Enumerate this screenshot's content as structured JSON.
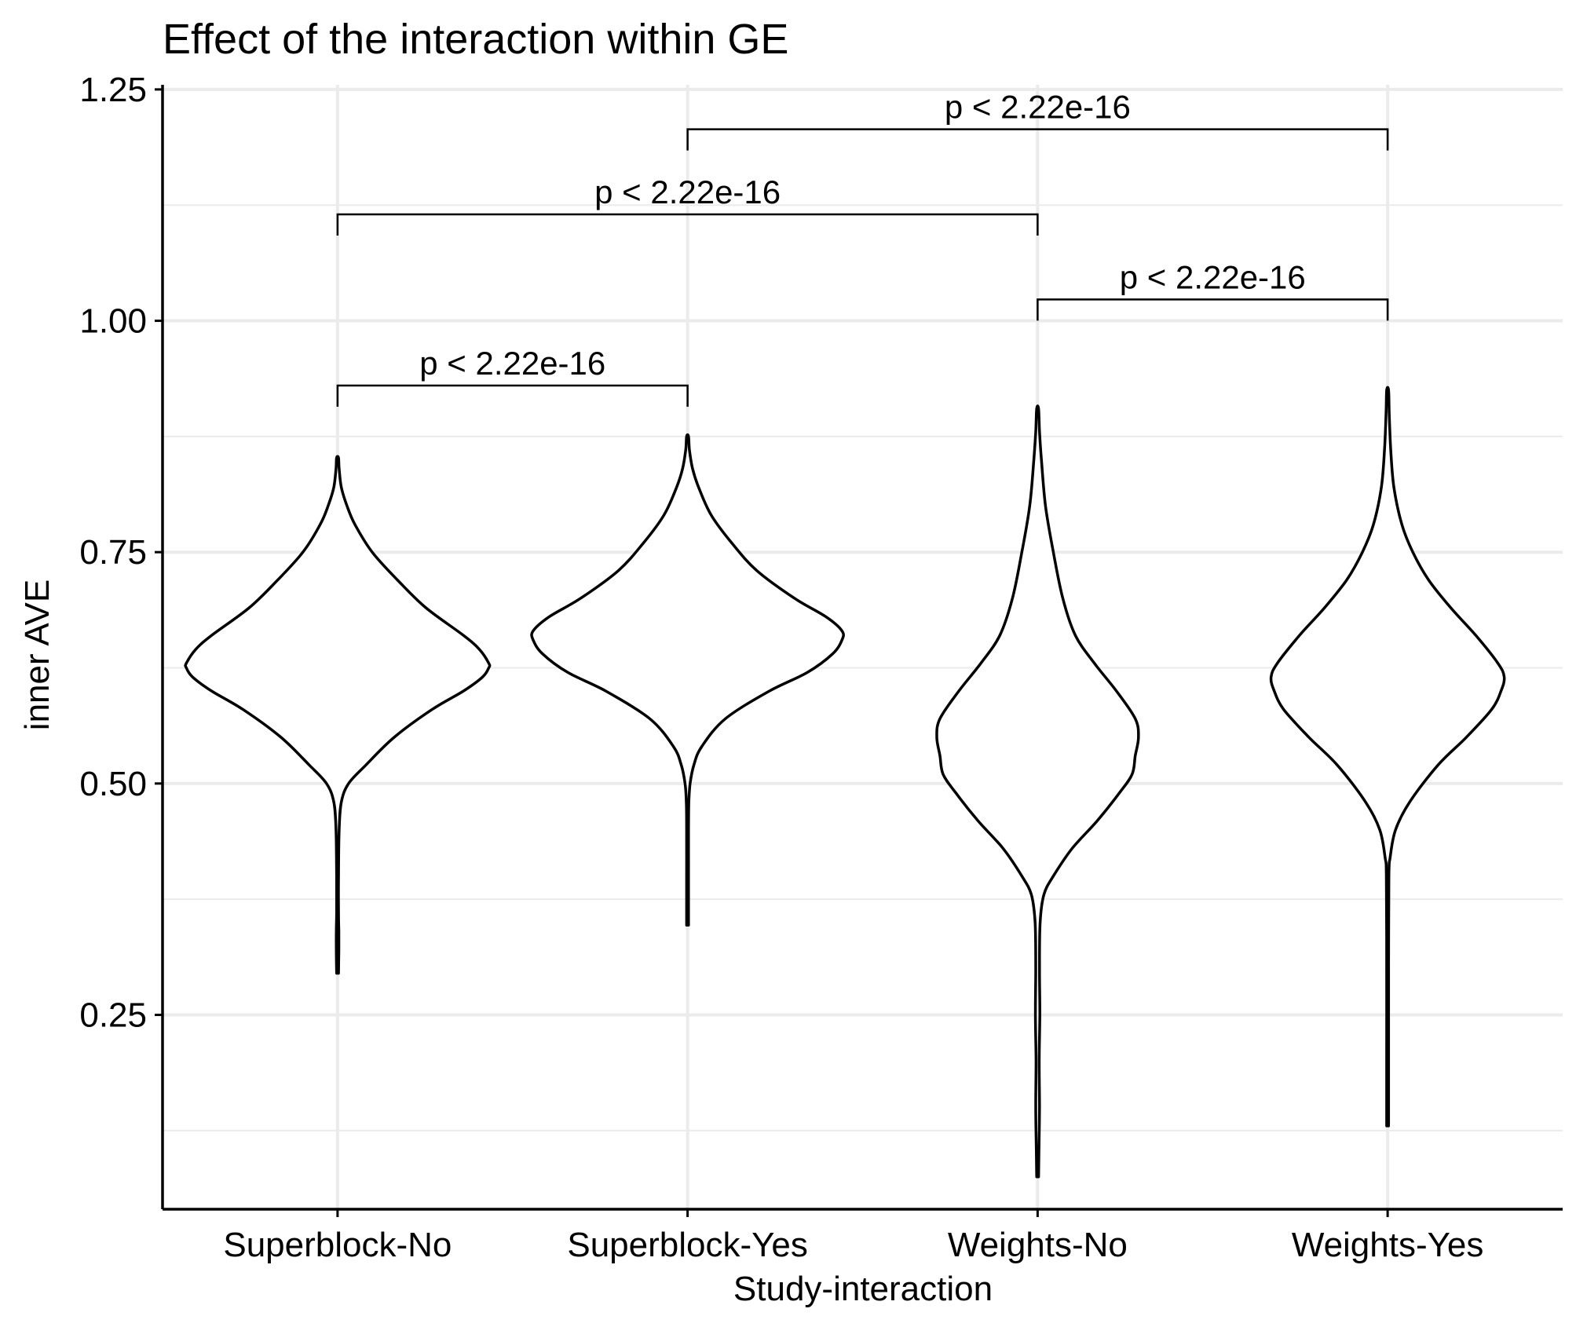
{
  "chart_data": {
    "type": "violin",
    "title": "Effect of the interaction within GE",
    "xlabel": "Study-interaction",
    "ylabel": "inner AVE",
    "categories": [
      "Superblock-No",
      "Superblock-Yes",
      "Weights-No",
      "Weights-Yes"
    ],
    "ylim": [
      0.04,
      1.255
    ],
    "yticks": [
      0.25,
      0.5,
      0.75,
      1.0
    ],
    "ytick_labels": [
      "0.25",
      "0.50",
      "0.75",
      "1.00",
      "1.25"
    ],
    "ytick_values": [
      0.25,
      0.5,
      0.75,
      1.0,
      1.25
    ],
    "grid": true,
    "violins": [
      {
        "category": "Superblock-No",
        "min": 0.295,
        "max": 0.852,
        "profile": [
          [
            0.295,
            0.003
          ],
          [
            0.32,
            0.004
          ],
          [
            0.34,
            0.004
          ],
          [
            0.36,
            0.003
          ],
          [
            0.4,
            0.003
          ],
          [
            0.45,
            0.005
          ],
          [
            0.48,
            0.012
          ],
          [
            0.5,
            0.035
          ],
          [
            0.52,
            0.09
          ],
          [
            0.55,
            0.18
          ],
          [
            0.58,
            0.3
          ],
          [
            0.6,
            0.4
          ],
          [
            0.615,
            0.46
          ],
          [
            0.625,
            0.48
          ],
          [
            0.63,
            0.48
          ],
          [
            0.645,
            0.45
          ],
          [
            0.66,
            0.4
          ],
          [
            0.69,
            0.28
          ],
          [
            0.72,
            0.19
          ],
          [
            0.75,
            0.11
          ],
          [
            0.78,
            0.055
          ],
          [
            0.8,
            0.03
          ],
          [
            0.82,
            0.012
          ],
          [
            0.84,
            0.005
          ],
          [
            0.852,
            0.003
          ]
        ]
      },
      {
        "category": "Superblock-Yes",
        "min": 0.347,
        "max": 0.875,
        "profile": [
          [
            0.347,
            0.003
          ],
          [
            0.4,
            0.003
          ],
          [
            0.45,
            0.003
          ],
          [
            0.48,
            0.004
          ],
          [
            0.5,
            0.008
          ],
          [
            0.52,
            0.02
          ],
          [
            0.54,
            0.045
          ],
          [
            0.57,
            0.12
          ],
          [
            0.6,
            0.26
          ],
          [
            0.62,
            0.38
          ],
          [
            0.64,
            0.46
          ],
          [
            0.655,
            0.49
          ],
          [
            0.665,
            0.49
          ],
          [
            0.68,
            0.44
          ],
          [
            0.7,
            0.34
          ],
          [
            0.73,
            0.22
          ],
          [
            0.76,
            0.14
          ],
          [
            0.79,
            0.075
          ],
          [
            0.82,
            0.035
          ],
          [
            0.84,
            0.016
          ],
          [
            0.86,
            0.006
          ],
          [
            0.875,
            0.003
          ]
        ]
      },
      {
        "category": "Weights-No",
        "min": 0.075,
        "max": 0.905,
        "profile": [
          [
            0.075,
            0.003
          ],
          [
            0.1,
            0.004
          ],
          [
            0.15,
            0.006
          ],
          [
            0.2,
            0.005
          ],
          [
            0.25,
            0.007
          ],
          [
            0.3,
            0.006
          ],
          [
            0.35,
            0.008
          ],
          [
            0.38,
            0.02
          ],
          [
            0.4,
            0.05
          ],
          [
            0.43,
            0.11
          ],
          [
            0.46,
            0.19
          ],
          [
            0.49,
            0.26
          ],
          [
            0.51,
            0.3
          ],
          [
            0.53,
            0.31
          ],
          [
            0.55,
            0.32
          ],
          [
            0.57,
            0.31
          ],
          [
            0.6,
            0.25
          ],
          [
            0.63,
            0.18
          ],
          [
            0.66,
            0.12
          ],
          [
            0.7,
            0.08
          ],
          [
            0.75,
            0.05
          ],
          [
            0.8,
            0.025
          ],
          [
            0.85,
            0.012
          ],
          [
            0.88,
            0.006
          ],
          [
            0.905,
            0.003
          ]
        ]
      },
      {
        "category": "Weights-Yes",
        "min": 0.13,
        "max": 0.925,
        "profile": [
          [
            0.13,
            0.003
          ],
          [
            0.2,
            0.003
          ],
          [
            0.3,
            0.003
          ],
          [
            0.4,
            0.004
          ],
          [
            0.42,
            0.008
          ],
          [
            0.45,
            0.025
          ],
          [
            0.48,
            0.07
          ],
          [
            0.52,
            0.16
          ],
          [
            0.55,
            0.25
          ],
          [
            0.58,
            0.33
          ],
          [
            0.6,
            0.36
          ],
          [
            0.615,
            0.37
          ],
          [
            0.63,
            0.35
          ],
          [
            0.66,
            0.28
          ],
          [
            0.69,
            0.2
          ],
          [
            0.72,
            0.13
          ],
          [
            0.75,
            0.08
          ],
          [
            0.78,
            0.045
          ],
          [
            0.82,
            0.02
          ],
          [
            0.86,
            0.01
          ],
          [
            0.9,
            0.005
          ],
          [
            0.925,
            0.003
          ]
        ]
      }
    ],
    "comparisons": [
      {
        "from": "Superblock-No",
        "to": "Superblock-Yes",
        "y": 0.93,
        "label": "p < 2.22e-16"
      },
      {
        "from": "Weights-No",
        "to": "Weights-Yes",
        "y": 1.023,
        "label": "p < 2.22e-16"
      },
      {
        "from": "Superblock-No",
        "to": "Weights-No",
        "y": 1.115,
        "label": "p < 2.22e-16"
      },
      {
        "from": "Superblock-Yes",
        "to": "Weights-Yes",
        "y": 1.207,
        "label": "p < 2.22e-16"
      }
    ]
  }
}
